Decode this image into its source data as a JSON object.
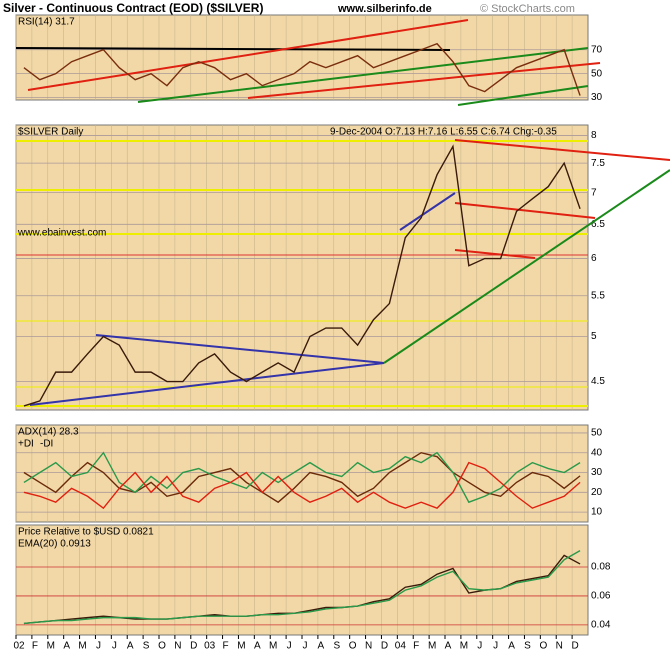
{
  "header": {
    "title": "Silver - Continuous Contract (EOD) ($SILVER)",
    "source": "www.silberinfo.de",
    "credit": "© StockCharts.com"
  },
  "chart_data": [
    {
      "type": "line",
      "ylim": [
        28,
        99
      ],
      "yticks": [
        30,
        50,
        70
      ],
      "series": [
        {
          "name": "RSI(14) 31.7",
          "color": "#7a2e0e",
          "values": [
            55,
            45,
            50,
            60,
            65,
            70,
            55,
            45,
            50,
            40,
            55,
            60,
            55,
            45,
            50,
            40,
            45,
            50,
            60,
            55,
            60,
            65,
            55,
            60,
            65,
            70,
            75,
            60,
            40,
            35,
            45,
            55,
            60,
            65,
            70,
            31.7
          ]
        }
      ]
    },
    {
      "type": "line",
      "log": true,
      "ylim": [
        4.21,
        8.2
      ],
      "yticks": [
        4.5,
        5.0,
        5.5,
        6.0,
        6.5,
        7.0,
        7.5,
        8.0
      ],
      "annotations": [
        "9-Dec-2004 O:7.13 H:7.16 L:6.55 C:6.74 Chg:-0.35",
        "www.ebainvest.com"
      ],
      "series": [
        {
          "name": "$SILVER Daily",
          "color": "#3a1a0a",
          "values": [
            4.25,
            4.3,
            4.6,
            4.6,
            4.8,
            5.0,
            4.9,
            4.6,
            4.6,
            4.5,
            4.5,
            4.7,
            4.8,
            4.6,
            4.5,
            4.6,
            4.7,
            4.6,
            5.0,
            5.1,
            5.1,
            4.9,
            5.2,
            5.4,
            6.3,
            6.6,
            7.3,
            7.8,
            5.9,
            6.0,
            6.0,
            6.7,
            6.9,
            7.1,
            7.5,
            6.74
          ]
        }
      ]
    },
    {
      "type": "line",
      "ylim": [
        5,
        54
      ],
      "yticks": [
        10,
        20,
        30,
        40,
        50
      ],
      "series": [
        {
          "name": "ADX(14) 28.3",
          "color": "#6b2a0a",
          "values": [
            30,
            25,
            20,
            28,
            35,
            30,
            22,
            20,
            25,
            18,
            20,
            28,
            30,
            32,
            25,
            20,
            15,
            22,
            30,
            28,
            25,
            18,
            22,
            30,
            35,
            40,
            38,
            30,
            25,
            20,
            18,
            25,
            30,
            28,
            22,
            28.3
          ]
        },
        {
          "name": "+DI",
          "color": "#2a9a4a",
          "values": [
            25,
            30,
            35,
            28,
            30,
            40,
            25,
            20,
            28,
            22,
            30,
            32,
            28,
            25,
            22,
            30,
            25,
            30,
            35,
            30,
            28,
            35,
            30,
            32,
            38,
            35,
            40,
            30,
            15,
            18,
            22,
            30,
            35,
            32,
            30,
            35
          ]
        },
        {
          "name": "-DI",
          "color": "#e02010",
          "values": [
            20,
            18,
            15,
            22,
            18,
            12,
            22,
            30,
            20,
            28,
            18,
            15,
            22,
            25,
            30,
            20,
            28,
            20,
            15,
            18,
            22,
            15,
            20,
            15,
            12,
            15,
            12,
            20,
            35,
            32,
            25,
            18,
            12,
            15,
            18,
            25
          ]
        }
      ]
    },
    {
      "type": "line",
      "ylim": [
        0.033,
        0.109
      ],
      "yticks": [
        0.04,
        0.06,
        0.08
      ],
      "categories": [
        "02",
        "F",
        "M",
        "A",
        "M",
        "J",
        "J",
        "A",
        "S",
        "O",
        "N",
        "D",
        "03",
        "F",
        "M",
        "A",
        "M",
        "J",
        "J",
        "A",
        "S",
        "O",
        "N",
        "D",
        "04",
        "F",
        "M",
        "A",
        "M",
        "J",
        "J",
        "A",
        "S",
        "O",
        "N",
        "D"
      ],
      "series": [
        {
          "name": "Price Relative to $USD 0.0821",
          "color": "#3a1a0a",
          "values": [
            0.041,
            0.042,
            0.043,
            0.044,
            0.045,
            0.046,
            0.045,
            0.044,
            0.044,
            0.044,
            0.045,
            0.046,
            0.047,
            0.046,
            0.046,
            0.047,
            0.048,
            0.048,
            0.05,
            0.052,
            0.052,
            0.053,
            0.056,
            0.058,
            0.066,
            0.068,
            0.075,
            0.079,
            0.062,
            0.064,
            0.065,
            0.07,
            0.072,
            0.074,
            0.088,
            0.0821
          ]
        },
        {
          "name": "EMA(20) 0.0913",
          "color": "#2a9a4a",
          "values": [
            0.041,
            0.042,
            0.043,
            0.043,
            0.044,
            0.045,
            0.045,
            0.045,
            0.044,
            0.044,
            0.045,
            0.046,
            0.046,
            0.046,
            0.046,
            0.047,
            0.047,
            0.048,
            0.049,
            0.051,
            0.052,
            0.053,
            0.055,
            0.057,
            0.064,
            0.067,
            0.073,
            0.077,
            0.065,
            0.064,
            0.065,
            0.069,
            0.071,
            0.073,
            0.085,
            0.0913
          ]
        }
      ]
    }
  ]
}
